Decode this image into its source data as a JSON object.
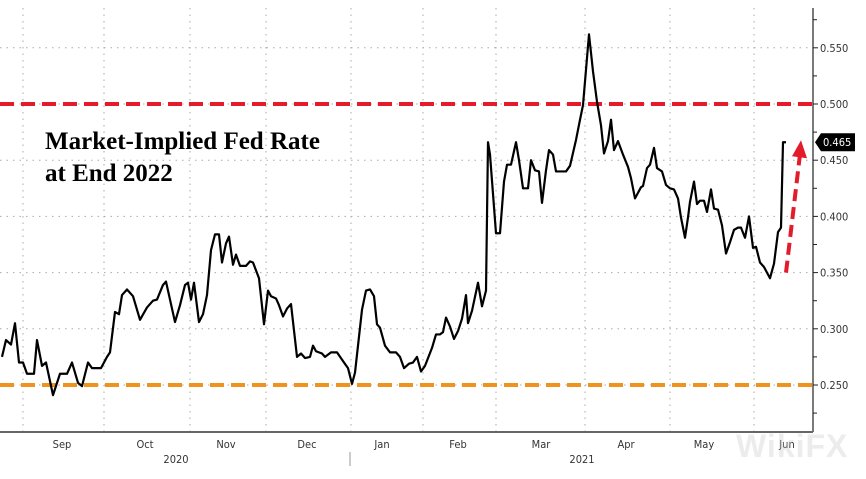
{
  "chart_data": {
    "type": "line",
    "title": "Market-Implied Fed Rate",
    "subtitle": "at End 2022",
    "xlabel": "",
    "ylabel": "",
    "x_unit": "trading days since start",
    "ylim": [
      0.21,
      0.58
    ],
    "y_ticks": [
      "0.250",
      "0.300",
      "0.350",
      "0.400",
      "0.450",
      "0.500",
      "0.550"
    ],
    "y_tick_values": [
      0.25,
      0.3,
      0.35,
      0.4,
      0.45,
      0.5,
      0.55
    ],
    "month_labels": [
      "Sep",
      "Oct",
      "Nov",
      "Dec",
      "Jan",
      "Feb",
      "Mar",
      "Apr",
      "May",
      "Jun"
    ],
    "month_label_days": [
      15.5,
      36.25,
      56.5,
      76.75,
      95.5,
      114.5,
      135.25,
      156.5,
      176,
      196.75
    ],
    "month_boundary_days": [
      5.75,
      26,
      47.5,
      66.5,
      87.75,
      105.75,
      124,
      146.25,
      167.5,
      188.5
    ],
    "years": [
      "2020",
      "2021"
    ],
    "year_label_days": [
      44,
      145.5
    ],
    "year_separator_day": 87.5,
    "last_value_label": "0.465",
    "grid": true,
    "reference_lines": [
      {
        "value": 0.5,
        "color": "#e31b2a",
        "style": "dashed"
      },
      {
        "value": 0.25,
        "color": "#f0921e",
        "style": "dashed"
      }
    ],
    "annotation_arrow": {
      "from_day": 196.5,
      "from_value": 0.35,
      "to_day": 200,
      "to_value": 0.466,
      "color": "#e31b2a"
    },
    "watermark": "WikiFX",
    "series": [
      {
        "name": "Market-Implied Fed Rate",
        "color": "#000000",
        "points": [
          [
            0.5,
            0.275
          ],
          [
            1.5,
            0.29
          ],
          [
            2.75,
            0.286
          ],
          [
            3.75,
            0.305
          ],
          [
            4.75,
            0.27
          ],
          [
            5.75,
            0.27
          ],
          [
            6.75,
            0.26
          ],
          [
            8.5,
            0.26
          ],
          [
            9.25,
            0.29
          ],
          [
            10.5,
            0.267
          ],
          [
            11.5,
            0.27
          ],
          [
            13.25,
            0.241
          ],
          [
            15,
            0.26
          ],
          [
            16.75,
            0.26
          ],
          [
            18,
            0.27
          ],
          [
            19.5,
            0.252
          ],
          [
            20.5,
            0.249
          ],
          [
            22,
            0.27
          ],
          [
            23,
            0.265
          ],
          [
            25.25,
            0.265
          ],
          [
            26.75,
            0.275
          ],
          [
            27.5,
            0.279
          ],
          [
            28.75,
            0.315
          ],
          [
            29.75,
            0.313
          ],
          [
            30.5,
            0.33
          ],
          [
            31.75,
            0.335
          ],
          [
            33.25,
            0.329
          ],
          [
            35,
            0.308
          ],
          [
            36.75,
            0.319
          ],
          [
            38.25,
            0.325
          ],
          [
            39.25,
            0.326
          ],
          [
            40.75,
            0.339
          ],
          [
            41.5,
            0.342
          ],
          [
            43.75,
            0.306
          ],
          [
            45,
            0.321
          ],
          [
            46.25,
            0.339
          ],
          [
            47,
            0.341
          ],
          [
            47.75,
            0.326
          ],
          [
            48.5,
            0.341
          ],
          [
            49.75,
            0.306
          ],
          [
            50.75,
            0.313
          ],
          [
            51.75,
            0.33
          ],
          [
            52.75,
            0.37
          ],
          [
            53.75,
            0.384
          ],
          [
            54.75,
            0.384
          ],
          [
            55.5,
            0.359
          ],
          [
            56.5,
            0.376
          ],
          [
            57.25,
            0.382
          ],
          [
            58.25,
            0.357
          ],
          [
            59,
            0.366
          ],
          [
            60,
            0.356
          ],
          [
            61.5,
            0.356
          ],
          [
            62.5,
            0.36
          ],
          [
            63.25,
            0.359
          ],
          [
            64.75,
            0.345
          ],
          [
            66,
            0.304
          ],
          [
            67,
            0.334
          ],
          [
            67.75,
            0.329
          ],
          [
            69,
            0.327
          ],
          [
            69.75,
            0.321
          ],
          [
            70.75,
            0.311
          ],
          [
            71.75,
            0.318
          ],
          [
            72.75,
            0.322
          ],
          [
            74.25,
            0.275
          ],
          [
            75.25,
            0.278
          ],
          [
            76.25,
            0.274
          ],
          [
            77.5,
            0.275
          ],
          [
            78.25,
            0.285
          ],
          [
            79,
            0.28
          ],
          [
            80.5,
            0.278
          ],
          [
            81.25,
            0.275
          ],
          [
            82.75,
            0.279
          ],
          [
            84.25,
            0.279
          ],
          [
            86,
            0.27
          ],
          [
            87,
            0.265
          ],
          [
            88,
            0.251
          ],
          [
            88.75,
            0.261
          ],
          [
            90.5,
            0.317
          ],
          [
            91.5,
            0.334
          ],
          [
            92.5,
            0.335
          ],
          [
            93.5,
            0.329
          ],
          [
            94.25,
            0.304
          ],
          [
            95,
            0.301
          ],
          [
            96.25,
            0.285
          ],
          [
            97.5,
            0.279
          ],
          [
            99,
            0.279
          ],
          [
            100,
            0.275
          ],
          [
            101,
            0.265
          ],
          [
            102.25,
            0.269
          ],
          [
            103.25,
            0.27
          ],
          [
            104.25,
            0.275
          ],
          [
            105.25,
            0.262
          ],
          [
            106.25,
            0.267
          ],
          [
            108,
            0.283
          ],
          [
            109,
            0.295
          ],
          [
            110,
            0.295
          ],
          [
            110.75,
            0.297
          ],
          [
            111.5,
            0.31
          ],
          [
            112.5,
            0.302
          ],
          [
            113.5,
            0.291
          ],
          [
            114.5,
            0.298
          ],
          [
            115.5,
            0.309
          ],
          [
            116.5,
            0.33
          ],
          [
            117,
            0.305
          ],
          [
            118,
            0.316
          ],
          [
            119.5,
            0.341
          ],
          [
            120.5,
            0.32
          ],
          [
            121.5,
            0.334
          ],
          [
            122,
            0.466
          ],
          [
            122.5,
            0.455
          ],
          [
            124,
            0.385
          ],
          [
            125,
            0.385
          ],
          [
            126,
            0.431
          ],
          [
            126.75,
            0.446
          ],
          [
            127.75,
            0.446
          ],
          [
            129,
            0.466
          ],
          [
            129.75,
            0.45
          ],
          [
            130.75,
            0.425
          ],
          [
            132,
            0.425
          ],
          [
            132.75,
            0.45
          ],
          [
            133.75,
            0.441
          ],
          [
            134.75,
            0.44
          ],
          [
            135.5,
            0.412
          ],
          [
            136.5,
            0.441
          ],
          [
            137.25,
            0.459
          ],
          [
            138.25,
            0.455
          ],
          [
            139,
            0.44
          ],
          [
            141.5,
            0.44
          ],
          [
            142.5,
            0.445
          ],
          [
            144,
            0.468
          ],
          [
            145,
            0.486
          ],
          [
            145.75,
            0.499
          ],
          [
            147.25,
            0.562
          ],
          [
            148.25,
            0.529
          ],
          [
            149.25,
            0.502
          ],
          [
            150.25,
            0.481
          ],
          [
            151,
            0.456
          ],
          [
            152,
            0.467
          ],
          [
            152.75,
            0.486
          ],
          [
            153.5,
            0.459
          ],
          [
            154.5,
            0.467
          ],
          [
            155.75,
            0.455
          ],
          [
            157,
            0.444
          ],
          [
            157.75,
            0.434
          ],
          [
            158.75,
            0.416
          ],
          [
            160.25,
            0.426
          ],
          [
            160.75,
            0.427
          ],
          [
            161.75,
            0.443
          ],
          [
            162.5,
            0.446
          ],
          [
            163.5,
            0.461
          ],
          [
            164.25,
            0.443
          ],
          [
            165.5,
            0.44
          ],
          [
            166.5,
            0.428
          ],
          [
            167.5,
            0.425
          ],
          [
            168.5,
            0.424
          ],
          [
            169.5,
            0.416
          ],
          [
            170.25,
            0.399
          ],
          [
            171.25,
            0.381
          ],
          [
            172,
            0.399
          ],
          [
            172.5,
            0.413
          ],
          [
            173.5,
            0.431
          ],
          [
            174.25,
            0.411
          ],
          [
            175,
            0.414
          ],
          [
            176,
            0.414
          ],
          [
            176.75,
            0.404
          ],
          [
            177.75,
            0.424
          ],
          [
            178.5,
            0.407
          ],
          [
            179.5,
            0.406
          ],
          [
            180.5,
            0.392
          ],
          [
            181.5,
            0.367
          ],
          [
            182.5,
            0.377
          ],
          [
            183.5,
            0.388
          ],
          [
            184.5,
            0.39
          ],
          [
            185.25,
            0.39
          ],
          [
            186.25,
            0.381
          ],
          [
            187.25,
            0.4
          ],
          [
            188.25,
            0.372
          ],
          [
            189,
            0.373
          ],
          [
            190,
            0.359
          ],
          [
            191,
            0.355
          ],
          [
            192.5,
            0.345
          ],
          [
            193.5,
            0.358
          ],
          [
            194.5,
            0.386
          ],
          [
            195.25,
            0.39
          ],
          [
            195.75,
            0.466
          ],
          [
            196.5,
            0.466
          ]
        ]
      }
    ]
  }
}
